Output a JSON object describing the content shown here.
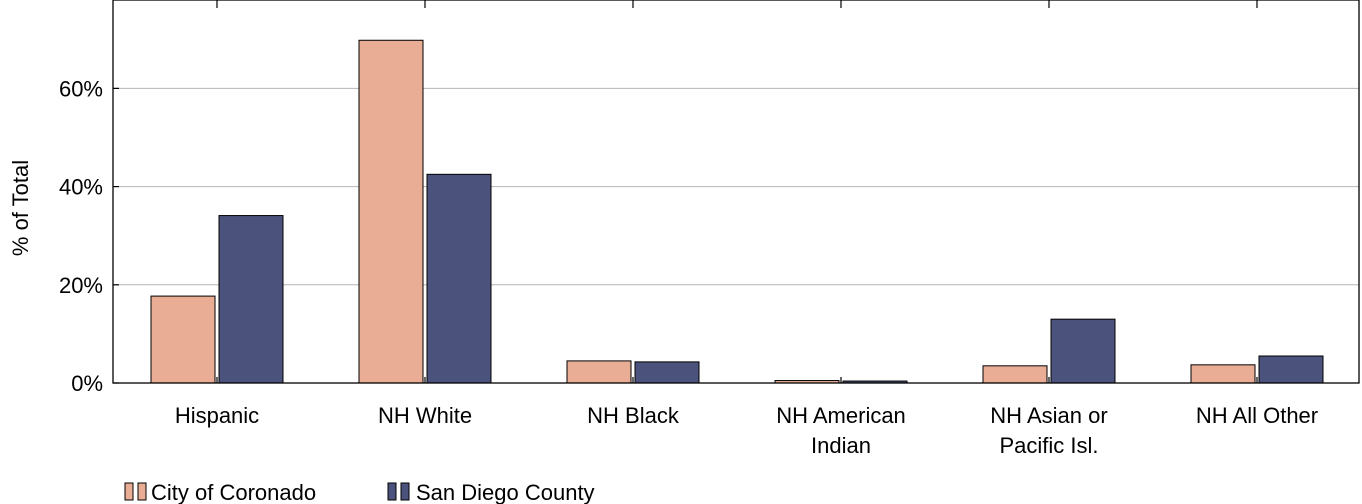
{
  "chart_data": {
    "type": "bar",
    "title": "",
    "xlabel": "",
    "ylabel": "% of Total",
    "categories": [
      "Hispanic",
      "NH White",
      "NH Black",
      "NH American Indian",
      "NH Asian or Pacific Isl.",
      "NH All Other"
    ],
    "category_lines": [
      [
        "Hispanic"
      ],
      [
        "NH White"
      ],
      [
        "NH Black"
      ],
      [
        "NH American",
        "Indian"
      ],
      [
        "NH Asian or",
        "Pacific Isl."
      ],
      [
        "NH All Other"
      ]
    ],
    "series": [
      {
        "name": "City of Coronado",
        "color": "#E8AD94",
        "values": [
          17.7,
          69.8,
          4.5,
          0.5,
          3.5,
          3.7
        ]
      },
      {
        "name": "San Diego County",
        "color": "#4B537D",
        "values": [
          34.1,
          42.5,
          4.3,
          0.4,
          13.0,
          5.5
        ]
      }
    ],
    "ylim": [
      0,
      78
    ],
    "yticks": [
      0,
      20,
      40,
      60
    ],
    "ytick_labels": [
      "0%",
      "20%",
      "40%",
      "60%"
    ],
    "grid": "horizontal",
    "legend_position": "bottom-left"
  }
}
